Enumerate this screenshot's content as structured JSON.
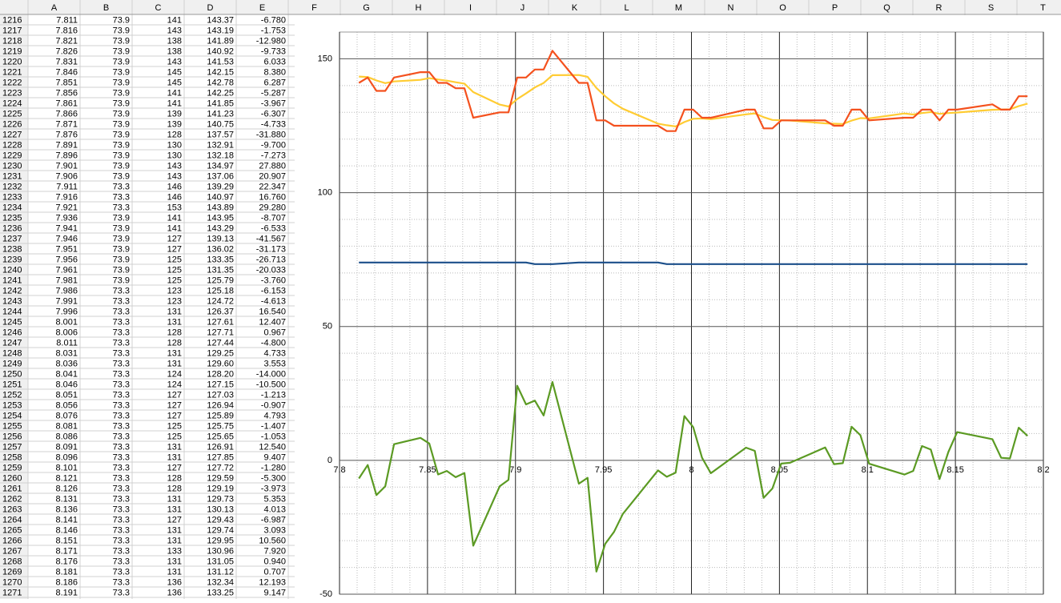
{
  "sheet": {
    "columns": [
      "A",
      "B",
      "C",
      "D",
      "E",
      "F",
      "G",
      "H",
      "I",
      "J",
      "K",
      "L",
      "M",
      "N",
      "O",
      "P",
      "Q",
      "R",
      "S",
      "T"
    ],
    "rows": [
      [
        "1216",
        "7.811",
        "73.9",
        "141",
        "143.37",
        "-6.780"
      ],
      [
        "1217",
        "7.816",
        "73.9",
        "143",
        "143.19",
        "-1.753"
      ],
      [
        "1218",
        "7.821",
        "73.9",
        "138",
        "141.89",
        "-12.980"
      ],
      [
        "1219",
        "7.826",
        "73.9",
        "138",
        "140.92",
        "-9.733"
      ],
      [
        "1220",
        "7.831",
        "73.9",
        "143",
        "141.53",
        "6.033"
      ],
      [
        "1221",
        "7.846",
        "73.9",
        "145",
        "142.15",
        "8.380"
      ],
      [
        "1222",
        "7.851",
        "73.9",
        "145",
        "142.78",
        "6.287"
      ],
      [
        "1223",
        "7.856",
        "73.9",
        "141",
        "142.25",
        "-5.287"
      ],
      [
        "1224",
        "7.861",
        "73.9",
        "141",
        "141.85",
        "-3.967"
      ],
      [
        "1225",
        "7.866",
        "73.9",
        "139",
        "141.23",
        "-6.307"
      ],
      [
        "1226",
        "7.871",
        "73.9",
        "139",
        "140.75",
        "-4.733"
      ],
      [
        "1227",
        "7.876",
        "73.9",
        "128",
        "137.57",
        "-31.880"
      ],
      [
        "1228",
        "7.891",
        "73.9",
        "130",
        "132.91",
        "-9.700"
      ],
      [
        "1229",
        "7.896",
        "73.9",
        "130",
        "132.18",
        "-7.273"
      ],
      [
        "1230",
        "7.901",
        "73.9",
        "143",
        "134.97",
        "27.880"
      ],
      [
        "1231",
        "7.906",
        "73.9",
        "143",
        "137.06",
        "20.907"
      ],
      [
        "1232",
        "7.911",
        "73.3",
        "146",
        "139.29",
        "22.347"
      ],
      [
        "1233",
        "7.916",
        "73.3",
        "146",
        "140.97",
        "16.760"
      ],
      [
        "1234",
        "7.921",
        "73.3",
        "153",
        "143.89",
        "29.280"
      ],
      [
        "1235",
        "7.936",
        "73.9",
        "141",
        "143.95",
        "-8.707"
      ],
      [
        "1236",
        "7.941",
        "73.9",
        "141",
        "143.29",
        "-6.533"
      ],
      [
        "1237",
        "7.946",
        "73.9",
        "127",
        "139.13",
        "-41.567"
      ],
      [
        "1238",
        "7.951",
        "73.9",
        "127",
        "136.02",
        "-31.173"
      ],
      [
        "1239",
        "7.956",
        "73.9",
        "125",
        "133.35",
        "-26.713"
      ],
      [
        "1240",
        "7.961",
        "73.9",
        "125",
        "131.35",
        "-20.033"
      ],
      [
        "1241",
        "7.981",
        "73.9",
        "125",
        "125.79",
        "-3.760"
      ],
      [
        "1242",
        "7.986",
        "73.3",
        "123",
        "125.18",
        "-6.153"
      ],
      [
        "1243",
        "7.991",
        "73.3",
        "123",
        "124.72",
        "-4.613"
      ],
      [
        "1244",
        "7.996",
        "73.3",
        "131",
        "126.37",
        "16.540"
      ],
      [
        "1245",
        "8.001",
        "73.3",
        "131",
        "127.61",
        "12.407"
      ],
      [
        "1246",
        "8.006",
        "73.3",
        "128",
        "127.71",
        "0.967"
      ],
      [
        "1247",
        "8.011",
        "73.3",
        "128",
        "127.44",
        "-4.800"
      ],
      [
        "1248",
        "8.031",
        "73.3",
        "131",
        "129.25",
        "4.733"
      ],
      [
        "1249",
        "8.036",
        "73.3",
        "131",
        "129.60",
        "3.553"
      ],
      [
        "1250",
        "8.041",
        "73.3",
        "124",
        "128.20",
        "-14.000"
      ],
      [
        "1251",
        "8.046",
        "73.3",
        "124",
        "127.15",
        "-10.500"
      ],
      [
        "1252",
        "8.051",
        "73.3",
        "127",
        "127.03",
        "-1.213"
      ],
      [
        "1253",
        "8.056",
        "73.3",
        "127",
        "126.94",
        "-0.907"
      ],
      [
        "1254",
        "8.076",
        "73.3",
        "127",
        "125.89",
        "4.793"
      ],
      [
        "1255",
        "8.081",
        "73.3",
        "125",
        "125.75",
        "-1.407"
      ],
      [
        "1256",
        "8.086",
        "73.3",
        "125",
        "125.65",
        "-1.053"
      ],
      [
        "1257",
        "8.091",
        "73.3",
        "131",
        "126.91",
        "12.540"
      ],
      [
        "1258",
        "8.096",
        "73.3",
        "131",
        "127.85",
        "9.407"
      ],
      [
        "1259",
        "8.101",
        "73.3",
        "127",
        "127.72",
        "-1.280"
      ],
      [
        "1260",
        "8.121",
        "73.3",
        "128",
        "129.59",
        "-5.300"
      ],
      [
        "1261",
        "8.126",
        "73.3",
        "128",
        "129.19",
        "-3.973"
      ],
      [
        "1262",
        "8.131",
        "73.3",
        "131",
        "129.73",
        "5.353"
      ],
      [
        "1263",
        "8.136",
        "73.3",
        "131",
        "130.13",
        "4.013"
      ],
      [
        "1264",
        "8.141",
        "73.3",
        "127",
        "129.43",
        "-6.987"
      ],
      [
        "1265",
        "8.146",
        "73.3",
        "131",
        "129.74",
        "3.093"
      ],
      [
        "1266",
        "8.151",
        "73.3",
        "131",
        "129.95",
        "10.560"
      ],
      [
        "1267",
        "8.171",
        "73.3",
        "133",
        "130.96",
        "7.920"
      ],
      [
        "1268",
        "8.176",
        "73.3",
        "131",
        "131.05",
        "0.940"
      ],
      [
        "1269",
        "8.181",
        "73.3",
        "131",
        "131.12",
        "0.707"
      ],
      [
        "1270",
        "8.186",
        "73.3",
        "136",
        "132.34",
        "12.193"
      ],
      [
        "1271",
        "8.191",
        "73.3",
        "136",
        "133.25",
        "9.147"
      ]
    ]
  },
  "chart_data": {
    "type": "line",
    "x": [
      7.811,
      7.816,
      7.821,
      7.826,
      7.831,
      7.846,
      7.851,
      7.856,
      7.861,
      7.866,
      7.871,
      7.876,
      7.891,
      7.896,
      7.901,
      7.906,
      7.911,
      7.916,
      7.921,
      7.936,
      7.941,
      7.946,
      7.951,
      7.956,
      7.961,
      7.981,
      7.986,
      7.991,
      7.996,
      8.001,
      8.006,
      8.011,
      8.031,
      8.036,
      8.041,
      8.046,
      8.051,
      8.056,
      8.076,
      8.081,
      8.086,
      8.091,
      8.096,
      8.101,
      8.121,
      8.126,
      8.131,
      8.136,
      8.141,
      8.146,
      8.151,
      8.171,
      8.176,
      8.181,
      8.186,
      8.191
    ],
    "series": [
      {
        "color": "#1b4f8a",
        "values": [
          73.9,
          73.9,
          73.9,
          73.9,
          73.9,
          73.9,
          73.9,
          73.9,
          73.9,
          73.9,
          73.9,
          73.9,
          73.9,
          73.9,
          73.9,
          73.9,
          73.3,
          73.3,
          73.3,
          73.9,
          73.9,
          73.9,
          73.9,
          73.9,
          73.9,
          73.9,
          73.3,
          73.3,
          73.3,
          73.3,
          73.3,
          73.3,
          73.3,
          73.3,
          73.3,
          73.3,
          73.3,
          73.3,
          73.3,
          73.3,
          73.3,
          73.3,
          73.3,
          73.3,
          73.3,
          73.3,
          73.3,
          73.3,
          73.3,
          73.3,
          73.3,
          73.3,
          73.3,
          73.3,
          73.3,
          73.3
        ]
      },
      {
        "color": "#ffcc33",
        "values": [
          143.37,
          143.19,
          141.89,
          140.92,
          141.53,
          142.15,
          142.78,
          142.25,
          141.85,
          141.23,
          140.75,
          137.57,
          132.91,
          132.18,
          134.97,
          137.06,
          139.29,
          140.97,
          143.89,
          143.95,
          143.29,
          139.13,
          136.02,
          133.35,
          131.35,
          125.79,
          125.18,
          124.72,
          126.37,
          127.61,
          127.71,
          127.44,
          129.25,
          129.6,
          128.2,
          127.15,
          127.03,
          126.94,
          125.89,
          125.75,
          125.65,
          126.91,
          127.85,
          127.72,
          129.59,
          129.19,
          129.73,
          130.13,
          129.43,
          129.74,
          129.95,
          130.96,
          131.05,
          131.12,
          132.34,
          133.25
        ]
      },
      {
        "color": "#f4511e",
        "values": [
          141,
          143,
          138,
          138,
          143,
          145,
          145,
          141,
          141,
          139,
          139,
          128,
          130,
          130,
          143,
          143,
          146,
          146,
          153,
          141,
          141,
          127,
          127,
          125,
          125,
          125,
          123,
          123,
          131,
          131,
          128,
          128,
          131,
          131,
          124,
          124,
          127,
          127,
          127,
          125,
          125,
          131,
          131,
          127,
          128,
          128,
          131,
          131,
          127,
          131,
          131,
          133,
          131,
          131,
          136,
          136
        ]
      },
      {
        "color": "#5b9a23",
        "values": [
          -6.78,
          -1.753,
          -12.98,
          -9.733,
          6.033,
          8.38,
          6.287,
          -5.287,
          -3.967,
          -6.307,
          -4.733,
          -31.88,
          -9.7,
          -7.273,
          27.88,
          20.907,
          22.347,
          16.76,
          29.28,
          -8.707,
          -6.533,
          -41.567,
          -31.173,
          -26.713,
          -20.033,
          -3.76,
          -6.153,
          -4.613,
          16.54,
          12.407,
          0.967,
          -4.8,
          4.733,
          3.553,
          -14.0,
          -10.5,
          -1.213,
          -0.907,
          4.793,
          -1.407,
          -1.053,
          12.54,
          9.407,
          -1.28,
          -5.3,
          -3.973,
          5.353,
          4.013,
          -6.987,
          3.093,
          10.56,
          7.92,
          0.94,
          0.707,
          12.193,
          9.147
        ]
      }
    ],
    "xlim": [
      7.8,
      8.2
    ],
    "xticks": [
      7.8,
      7.85,
      7.9,
      7.95,
      8,
      8.05,
      8.1,
      8.15,
      8.2
    ],
    "ylim": [
      -50,
      160
    ],
    "yticks": [
      -50,
      0,
      50,
      100,
      150
    ],
    "grid": true
  }
}
